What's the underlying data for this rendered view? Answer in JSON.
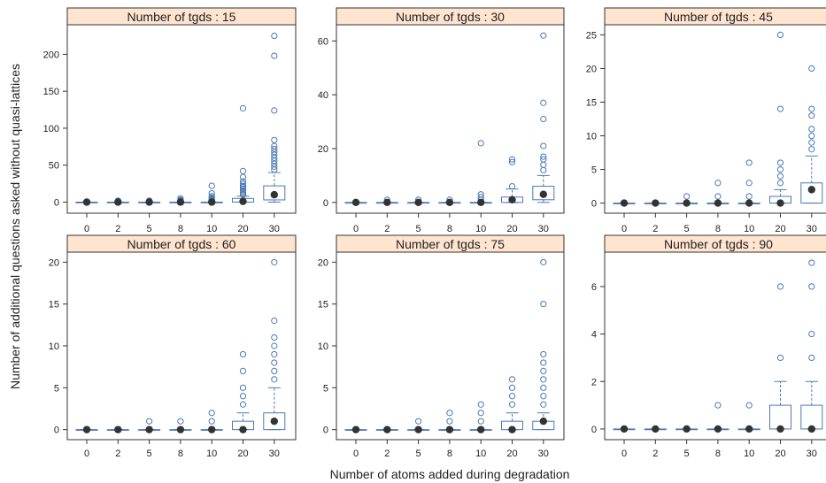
{
  "chart_data": {
    "type": "boxplot",
    "xlabel": "Number of atoms added during degradation",
    "ylabel": "Number of additional questions asked without quasi-lattices",
    "categories": [
      "0",
      "2",
      "5",
      "8",
      "10",
      "20",
      "30"
    ],
    "colors": {
      "box": "#4a7ab5",
      "strip_fill": "#ffe4cf",
      "median": "#333333",
      "outlier": "#4a7ab5"
    },
    "panels": [
      {
        "title": "Number of tgds : 15",
        "ylim": [
          -15,
          240
        ],
        "yticks": [
          0,
          50,
          100,
          150,
          200
        ],
        "boxes": [
          {
            "category": "0",
            "q1": 0,
            "median": 0,
            "q3": 0,
            "whisker_low": 0,
            "whisker_high": 0,
            "outliers": []
          },
          {
            "category": "2",
            "q1": 0,
            "median": 0,
            "q3": 0,
            "whisker_low": 0,
            "whisker_high": 0,
            "outliers": [
              1,
              2
            ]
          },
          {
            "category": "5",
            "q1": 0,
            "median": 0,
            "q3": 0,
            "whisker_low": 0,
            "whisker_high": 0,
            "outliers": [
              1,
              2
            ]
          },
          {
            "category": "8",
            "q1": 0,
            "median": 0,
            "q3": 0,
            "whisker_low": 0,
            "whisker_high": 0,
            "outliers": [
              1,
              2,
              3,
              5
            ]
          },
          {
            "category": "10",
            "q1": 0,
            "median": 0,
            "q3": 0,
            "whisker_low": 0,
            "whisker_high": 0,
            "outliers": [
              1,
              2,
              3,
              4,
              6,
              8,
              12,
              22
            ]
          },
          {
            "category": "20",
            "q1": 0,
            "median": 1,
            "q3": 5,
            "whisker_low": 0,
            "whisker_high": 8,
            "outliers": [
              10,
              12,
              14,
              16,
              18,
              20,
              22,
              25,
              28,
              34,
              42,
              127
            ]
          },
          {
            "category": "30",
            "q1": 3,
            "median": 10,
            "q3": 22,
            "whisker_low": 0,
            "whisker_high": 40,
            "outliers": [
              44,
              48,
              52,
              56,
              60,
              64,
              68,
              72,
              76,
              84,
              124,
              198,
              225
            ]
          }
        ]
      },
      {
        "title": "Number of tgds : 30",
        "ylim": [
          -4,
          66
        ],
        "yticks": [
          0,
          20,
          40,
          60
        ],
        "boxes": [
          {
            "category": "0",
            "q1": 0,
            "median": 0,
            "q3": 0,
            "whisker_low": 0,
            "whisker_high": 0,
            "outliers": []
          },
          {
            "category": "2",
            "q1": 0,
            "median": 0,
            "q3": 0,
            "whisker_low": 0,
            "whisker_high": 0,
            "outliers": [
              1
            ]
          },
          {
            "category": "5",
            "q1": 0,
            "median": 0,
            "q3": 0,
            "whisker_low": 0,
            "whisker_high": 0,
            "outliers": [
              1
            ]
          },
          {
            "category": "8",
            "q1": 0,
            "median": 0,
            "q3": 0,
            "whisker_low": 0,
            "whisker_high": 0,
            "outliers": [
              1
            ]
          },
          {
            "category": "10",
            "q1": 0,
            "median": 0,
            "q3": 0,
            "whisker_low": 0,
            "whisker_high": 0,
            "outliers": [
              1,
              2,
              3,
              22
            ]
          },
          {
            "category": "20",
            "q1": 0,
            "median": 1,
            "q3": 2,
            "whisker_low": 0,
            "whisker_high": 5,
            "outliers": [
              6,
              15,
              16
            ]
          },
          {
            "category": "30",
            "q1": 1,
            "median": 3,
            "q3": 6,
            "whisker_low": 0,
            "whisker_high": 10,
            "outliers": [
              12,
              14,
              16,
              17,
              21,
              31,
              37,
              62
            ]
          }
        ]
      },
      {
        "title": "Number of tgds : 45",
        "ylim": [
          -1.5,
          26.5
        ],
        "yticks": [
          0,
          5,
          10,
          15,
          20,
          25
        ],
        "boxes": [
          {
            "category": "0",
            "q1": 0,
            "median": 0,
            "q3": 0,
            "whisker_low": 0,
            "whisker_high": 0,
            "outliers": []
          },
          {
            "category": "2",
            "q1": 0,
            "median": 0,
            "q3": 0,
            "whisker_low": 0,
            "whisker_high": 0,
            "outliers": []
          },
          {
            "category": "5",
            "q1": 0,
            "median": 0,
            "q3": 0,
            "whisker_low": 0,
            "whisker_high": 0,
            "outliers": [
              1
            ]
          },
          {
            "category": "8",
            "q1": 0,
            "median": 0,
            "q3": 0,
            "whisker_low": 0,
            "whisker_high": 0,
            "outliers": [
              1,
              3
            ]
          },
          {
            "category": "10",
            "q1": 0,
            "median": 0,
            "q3": 0,
            "whisker_low": 0,
            "whisker_high": 0,
            "outliers": [
              1,
              3,
              6
            ]
          },
          {
            "category": "20",
            "q1": 0,
            "median": 0,
            "q3": 1,
            "whisker_low": 0,
            "whisker_high": 2,
            "outliers": [
              3,
              4,
              5,
              6,
              14,
              25
            ]
          },
          {
            "category": "30",
            "q1": 0,
            "median": 2,
            "q3": 3,
            "whisker_low": 0,
            "whisker_high": 7,
            "outliers": [
              8,
              9,
              10,
              11,
              13,
              14,
              20
            ]
          }
        ]
      },
      {
        "title": "Number of tgds : 60",
        "ylim": [
          -1.2,
          21.2
        ],
        "yticks": [
          0,
          5,
          10,
          15,
          20
        ],
        "boxes": [
          {
            "category": "0",
            "q1": 0,
            "median": 0,
            "q3": 0,
            "whisker_low": 0,
            "whisker_high": 0,
            "outliers": []
          },
          {
            "category": "2",
            "q1": 0,
            "median": 0,
            "q3": 0,
            "whisker_low": 0,
            "whisker_high": 0,
            "outliers": []
          },
          {
            "category": "5",
            "q1": 0,
            "median": 0,
            "q3": 0,
            "whisker_low": 0,
            "whisker_high": 0,
            "outliers": [
              1
            ]
          },
          {
            "category": "8",
            "q1": 0,
            "median": 0,
            "q3": 0,
            "whisker_low": 0,
            "whisker_high": 0,
            "outliers": [
              1
            ]
          },
          {
            "category": "10",
            "q1": 0,
            "median": 0,
            "q3": 0,
            "whisker_low": 0,
            "whisker_high": 0,
            "outliers": [
              1,
              2
            ]
          },
          {
            "category": "20",
            "q1": 0,
            "median": 0,
            "q3": 1,
            "whisker_low": 0,
            "whisker_high": 2,
            "outliers": [
              3,
              4,
              5,
              7,
              9
            ]
          },
          {
            "category": "30",
            "q1": 0,
            "median": 1,
            "q3": 2,
            "whisker_low": 0,
            "whisker_high": 5,
            "outliers": [
              6,
              7,
              8,
              9,
              10,
              11,
              13,
              20
            ]
          }
        ]
      },
      {
        "title": "Number of tgds : 75",
        "ylim": [
          -1.2,
          21.2
        ],
        "yticks": [
          0,
          5,
          10,
          15,
          20
        ],
        "boxes": [
          {
            "category": "0",
            "q1": 0,
            "median": 0,
            "q3": 0,
            "whisker_low": 0,
            "whisker_high": 0,
            "outliers": []
          },
          {
            "category": "2",
            "q1": 0,
            "median": 0,
            "q3": 0,
            "whisker_low": 0,
            "whisker_high": 0,
            "outliers": []
          },
          {
            "category": "5",
            "q1": 0,
            "median": 0,
            "q3": 0,
            "whisker_low": 0,
            "whisker_high": 0,
            "outliers": [
              1
            ]
          },
          {
            "category": "8",
            "q1": 0,
            "median": 0,
            "q3": 0,
            "whisker_low": 0,
            "whisker_high": 0,
            "outliers": [
              1,
              2
            ]
          },
          {
            "category": "10",
            "q1": 0,
            "median": 0,
            "q3": 0,
            "whisker_low": 0,
            "whisker_high": 0,
            "outliers": [
              1,
              2,
              3
            ]
          },
          {
            "category": "20",
            "q1": 0,
            "median": 0,
            "q3": 1,
            "whisker_low": 0,
            "whisker_high": 2,
            "outliers": [
              3,
              4,
              5,
              6
            ]
          },
          {
            "category": "30",
            "q1": 0,
            "median": 1,
            "q3": 1,
            "whisker_low": 0,
            "whisker_high": 2,
            "outliers": [
              3,
              4,
              5,
              6,
              7,
              8,
              9,
              15,
              20
            ]
          }
        ]
      },
      {
        "title": "Number of tgds : 90",
        "ylim": [
          -0.45,
          7.45
        ],
        "yticks": [
          0,
          2,
          4,
          6
        ],
        "boxes": [
          {
            "category": "0",
            "q1": 0,
            "median": 0,
            "q3": 0,
            "whisker_low": 0,
            "whisker_high": 0,
            "outliers": []
          },
          {
            "category": "2",
            "q1": 0,
            "median": 0,
            "q3": 0,
            "whisker_low": 0,
            "whisker_high": 0,
            "outliers": []
          },
          {
            "category": "5",
            "q1": 0,
            "median": 0,
            "q3": 0,
            "whisker_low": 0,
            "whisker_high": 0,
            "outliers": []
          },
          {
            "category": "8",
            "q1": 0,
            "median": 0,
            "q3": 0,
            "whisker_low": 0,
            "whisker_high": 0,
            "outliers": [
              1
            ]
          },
          {
            "category": "10",
            "q1": 0,
            "median": 0,
            "q3": 0,
            "whisker_low": 0,
            "whisker_high": 0,
            "outliers": [
              1
            ]
          },
          {
            "category": "20",
            "q1": 0,
            "median": 0,
            "q3": 1,
            "whisker_low": 0,
            "whisker_high": 2,
            "outliers": [
              3,
              6
            ]
          },
          {
            "category": "30",
            "q1": 0,
            "median": 0,
            "q3": 1,
            "whisker_low": 0,
            "whisker_high": 2,
            "outliers": [
              3,
              4,
              6,
              7
            ]
          }
        ]
      }
    ]
  }
}
